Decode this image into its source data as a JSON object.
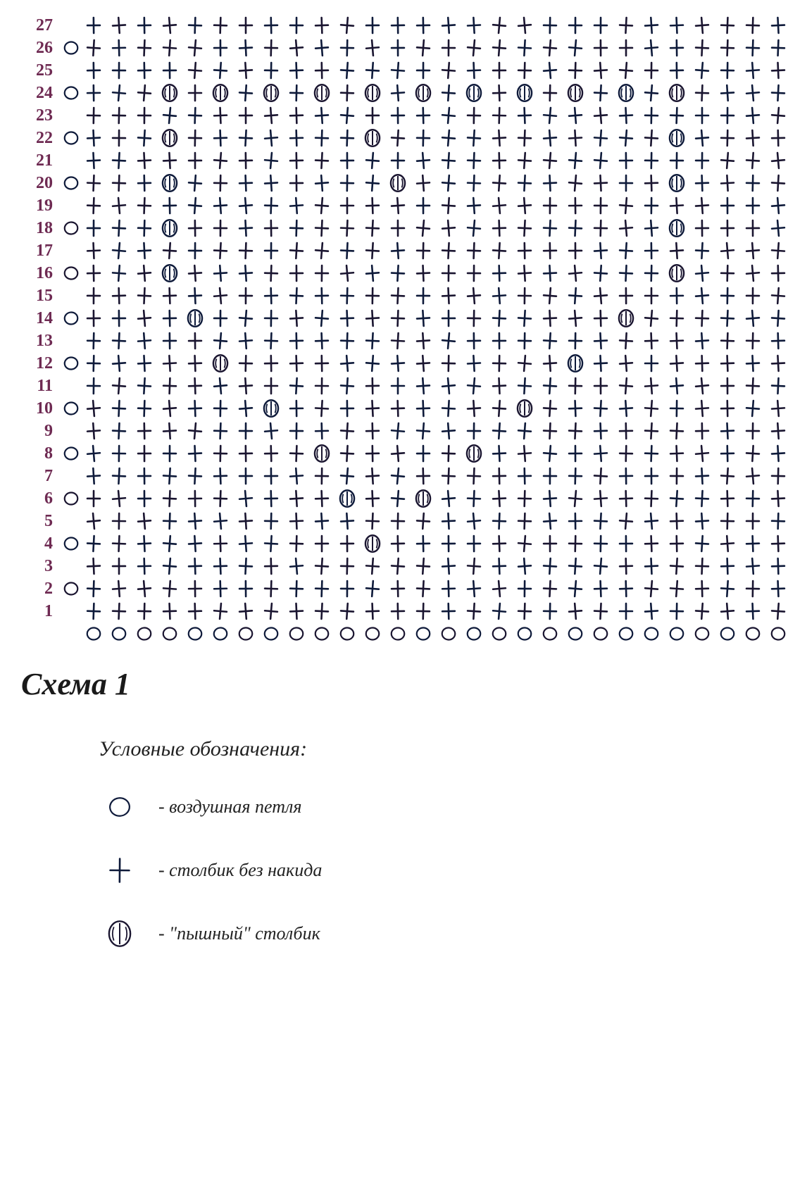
{
  "title": "Схема 1",
  "legend_title": "Условные обозначения:",
  "legend_items": [
    {
      "symbol": "chain",
      "text": "- воздушная петля"
    },
    {
      "symbol": "sc",
      "text": "- столбик без накида"
    },
    {
      "symbol": "puff",
      "text": "- \"пышный\" столбик"
    }
  ],
  "colors": {
    "row_label": "#6e2a52",
    "ink": "#0e1a3a",
    "ink_alt": "#1a1530",
    "background": "#ffffff"
  },
  "chart": {
    "num_cols": 28,
    "num_rows": 27,
    "stitch_size": 32,
    "symbols": {
      "chain": "◯ symbol - hand-drawn open circle",
      "sc": "+ symbol - crossed lines (single crochet)",
      "puff": "⦶ oval with vertical fill lines (puff stitch)"
    },
    "puff_positions": {
      "4": [
        12
      ],
      "6": [
        11,
        14
      ],
      "8": [
        10,
        16
      ],
      "10": [
        8,
        18
      ],
      "12": [
        6,
        20
      ],
      "14": [
        5,
        22
      ],
      "16": [
        4,
        24
      ],
      "18": [
        4,
        24
      ],
      "20": [
        4,
        13,
        24
      ],
      "22": [
        4,
        12,
        24
      ],
      "24": [
        4,
        6,
        8,
        10,
        12,
        14,
        16,
        18,
        20,
        22,
        24
      ]
    },
    "start_chain_rows_even": true,
    "end_chain_rows_odd": true,
    "base_chain_row": true
  }
}
